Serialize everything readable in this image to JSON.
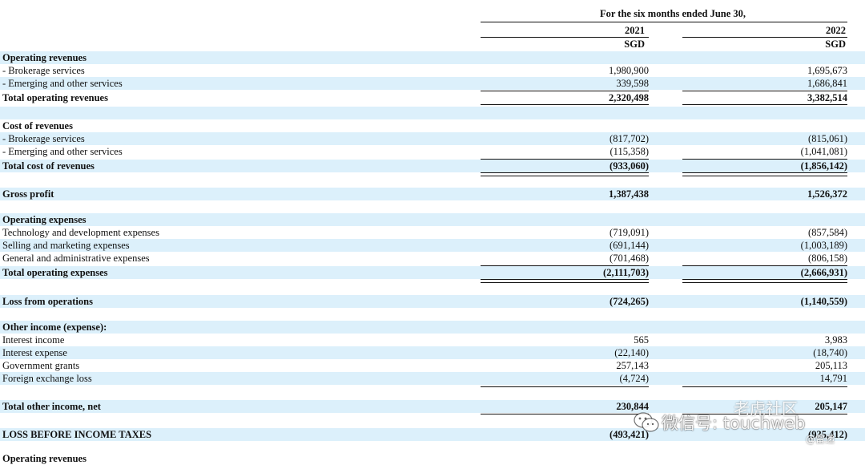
{
  "header": {
    "period": "For the six months ended June 30,",
    "col1_year": "2021",
    "col2_year": "2022",
    "col1_currency": "SGD",
    "col2_currency": "SGD"
  },
  "rows": [
    {
      "label": "Operating revenues",
      "v1": "",
      "v2": ""
    },
    {
      "label": "- Brokerage services",
      "v1": "1,980,900",
      "v2": "1,695,673"
    },
    {
      "label": "- Emerging and other services",
      "v1": "339,598",
      "v2": "1,686,841"
    },
    {
      "label": "Total operating revenues",
      "v1": "2,320,498",
      "v2": "3,382,514"
    },
    {
      "label": "Cost of revenues",
      "v1": "",
      "v2": ""
    },
    {
      "label": "- Brokerage services",
      "v1": "(817,702)",
      "v2": "(815,061)"
    },
    {
      "label": "- Emerging and other services",
      "v1": "(115,358)",
      "v2": "(1,041,081)"
    },
    {
      "label": "Total cost of revenues",
      "v1": "(933,060)",
      "v2": "(1,856,142)"
    },
    {
      "label": "Gross profit",
      "v1": "1,387,438",
      "v2": "1,526,372"
    },
    {
      "label": "Operating expenses",
      "v1": "",
      "v2": ""
    },
    {
      "label": "Technology and development expenses",
      "v1": "(719,091)",
      "v2": "(857,584)"
    },
    {
      "label": "Selling and marketing expenses",
      "v1": "(691,144)",
      "v2": "(1,003,189)"
    },
    {
      "label": "General and administrative expenses",
      "v1": "(701,468)",
      "v2": "(806,158)"
    },
    {
      "label": "Total operating expenses",
      "v1": "(2,111,703)",
      "v2": "(2,666,931)"
    },
    {
      "label": "Loss from operations",
      "v1": "(724,265)",
      "v2": "(1,140,559)"
    },
    {
      "label": "Other income (expense):",
      "v1": "",
      "v2": ""
    },
    {
      "label": "Interest income",
      "v1": "565",
      "v2": "3,983"
    },
    {
      "label": "Interest expense",
      "v1": "(22,140)",
      "v2": "(18,740)"
    },
    {
      "label": "Government grants",
      "v1": "257,143",
      "v2": "205,113"
    },
    {
      "label": "Foreign exchange loss",
      "v1": "(4,724)",
      "v2": "14,791"
    },
    {
      "label": "Total other income, net",
      "v1": "230,844",
      "v2": "205,147"
    },
    {
      "label": "LOSS BEFORE INCOME TAXES",
      "v1": "(493,421)",
      "v2": "(935,412)"
    },
    {
      "label": "Operating revenues",
      "v1": "",
      "v2": ""
    }
  ],
  "watermark": {
    "text": "微信号: touchweb",
    "top": "老虎社区",
    "sub": "@雷递"
  }
}
